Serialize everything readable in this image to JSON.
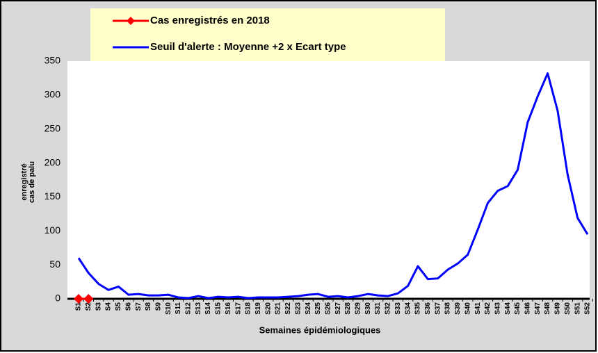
{
  "chart_data": {
    "type": "line",
    "xlabel": "Semaines épidémiologiques",
    "ylabel": [
      "cas de palu",
      "enregistré"
    ],
    "categories": [
      "S1",
      "S2",
      "S3",
      "S4",
      "S5",
      "S6",
      "S7",
      "S8",
      "S9",
      "S10",
      "S11",
      "S12",
      "S13",
      "S14",
      "S15",
      "S16",
      "S17",
      "S18",
      "S19",
      "S20",
      "S21",
      "S22",
      "S23",
      "S24",
      "S25",
      "S26",
      "S27",
      "S28",
      "S29",
      "S30",
      "S31",
      "S32",
      "S33",
      "S34",
      "S35",
      "S36",
      "S37",
      "S38",
      "S39",
      "S40",
      "S41",
      "S42",
      "S43",
      "S44",
      "S45",
      "S46",
      "S47",
      "S48",
      "S49",
      "S50",
      "S51",
      "S52"
    ],
    "series": [
      {
        "name": "Cas enregistrés en 2018",
        "color": "#ff0000",
        "marker": "diamond",
        "values": [
          0,
          0,
          null,
          null,
          null,
          null,
          null,
          null,
          null,
          null,
          null,
          null,
          null,
          null,
          null,
          null,
          null,
          null,
          null,
          null,
          null,
          null,
          null,
          null,
          null,
          null,
          null,
          null,
          null,
          null,
          null,
          null,
          null,
          null,
          null,
          null,
          null,
          null,
          null,
          null,
          null,
          null,
          null,
          null,
          null,
          null,
          null,
          null,
          null,
          null,
          null,
          null
        ]
      },
      {
        "name": "Seuil d'alerte : Moyenne +2 x Ecart type",
        "color": "#0000ff",
        "values": [
          60,
          38,
          22,
          13,
          18,
          6,
          7,
          5,
          5,
          6,
          2,
          1,
          4,
          1,
          3,
          2,
          3,
          1,
          2,
          2,
          2,
          3,
          4,
          6,
          7,
          3,
          4,
          2,
          4,
          7,
          5,
          4,
          8,
          19,
          48,
          29,
          30,
          43,
          52,
          65,
          102,
          141,
          159,
          166,
          190,
          260,
          298,
          332,
          277,
          183,
          119,
          95
        ]
      }
    ],
    "ylim": [
      0,
      350
    ],
    "yticks": [
      0,
      50,
      100,
      150,
      200,
      250,
      300,
      350
    ],
    "grid": false
  }
}
